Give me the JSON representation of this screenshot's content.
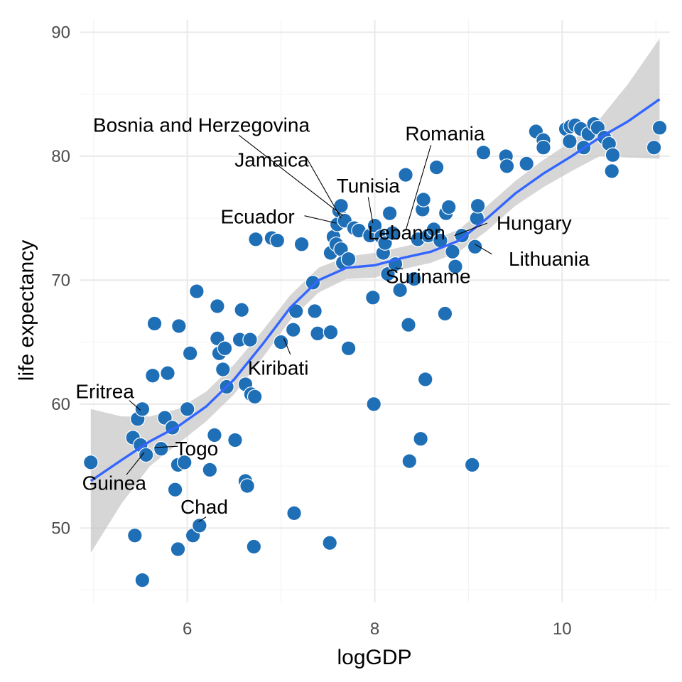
{
  "chart_data": {
    "type": "scatter",
    "title": "",
    "xlabel": "logGDP",
    "ylabel": "life expectancy",
    "xlim": [
      4.85,
      11.15
    ],
    "ylim": [
      44,
      91
    ],
    "x_ticks": [
      6,
      8,
      10
    ],
    "y_ticks": [
      50,
      60,
      70,
      80,
      90
    ],
    "grid": true,
    "legend": "none",
    "colors": {
      "points": "#1f6fb6",
      "point_edge": "#ffffff",
      "smooth": "#3366ff",
      "ribbon": "#c8c8c8",
      "grid": "#ebebeb"
    },
    "points": [
      [
        4.97,
        55.3
      ],
      [
        5.42,
        57.3
      ],
      [
        5.44,
        49.4
      ],
      [
        5.47,
        58.8
      ],
      [
        5.52,
        59.6
      ],
      [
        5.5,
        56.7
      ],
      [
        5.56,
        55.9
      ],
      [
        5.52,
        45.8
      ],
      [
        5.63,
        62.3
      ],
      [
        5.65,
        66.5
      ],
      [
        5.72,
        56.4
      ],
      [
        5.76,
        58.9
      ],
      [
        5.79,
        62.5
      ],
      [
        5.84,
        58.1
      ],
      [
        5.87,
        53.1
      ],
      [
        5.9,
        55.1
      ],
      [
        5.9,
        48.3
      ],
      [
        5.91,
        66.3
      ],
      [
        5.97,
        55.3
      ],
      [
        6.0,
        59.6
      ],
      [
        6.03,
        64.1
      ],
      [
        6.06,
        49.4
      ],
      [
        6.13,
        50.2
      ],
      [
        6.1,
        69.1
      ],
      [
        6.24,
        54.7
      ],
      [
        6.29,
        57.5
      ],
      [
        6.32,
        65.3
      ],
      [
        6.32,
        67.9
      ],
      [
        6.34,
        64.1
      ],
      [
        6.38,
        62.8
      ],
      [
        6.4,
        64.5
      ],
      [
        6.42,
        61.4
      ],
      [
        6.51,
        57.1
      ],
      [
        6.56,
        65.2
      ],
      [
        6.58,
        67.6
      ],
      [
        6.62,
        53.8
      ],
      [
        6.62,
        61.6
      ],
      [
        6.64,
        53.4
      ],
      [
        6.67,
        65.2
      ],
      [
        6.68,
        60.8
      ],
      [
        6.71,
        48.5
      ],
      [
        6.72,
        60.6
      ],
      [
        6.73,
        73.3
      ],
      [
        6.9,
        73.4
      ],
      [
        6.96,
        73.2
      ],
      [
        7.0,
        65.0
      ],
      [
        7.13,
        66.0
      ],
      [
        7.14,
        51.2
      ],
      [
        7.16,
        67.5
      ],
      [
        7.22,
        72.9
      ],
      [
        7.34,
        69.8
      ],
      [
        7.36,
        67.5
      ],
      [
        7.39,
        65.7
      ],
      [
        7.53,
        65.8
      ],
      [
        7.52,
        48.8
      ],
      [
        7.53,
        72.2
      ],
      [
        7.56,
        73.5
      ],
      [
        7.59,
        72.9
      ],
      [
        7.6,
        74.5
      ],
      [
        7.62,
        75.6
      ],
      [
        7.64,
        76.0
      ],
      [
        7.64,
        72.5
      ],
      [
        7.66,
        71.4
      ],
      [
        7.68,
        74.8
      ],
      [
        7.72,
        64.5
      ],
      [
        7.72,
        71.7
      ],
      [
        7.78,
        74.2
      ],
      [
        7.83,
        74.0
      ],
      [
        7.95,
        73.6
      ],
      [
        7.98,
        68.6
      ],
      [
        7.99,
        60.0
      ],
      [
        8.0,
        74.4
      ],
      [
        8.07,
        73.5
      ],
      [
        8.09,
        72.2
      ],
      [
        8.11,
        73.0
      ],
      [
        8.14,
        70.5
      ],
      [
        8.16,
        75.4
      ],
      [
        8.19,
        73.8
      ],
      [
        8.22,
        71.3
      ],
      [
        8.27,
        69.2
      ],
      [
        8.33,
        78.5
      ],
      [
        8.36,
        66.4
      ],
      [
        8.37,
        55.4
      ],
      [
        8.42,
        70.1
      ],
      [
        8.46,
        73.3
      ],
      [
        8.49,
        57.2
      ],
      [
        8.51,
        75.7
      ],
      [
        8.52,
        76.5
      ],
      [
        8.54,
        62.0
      ],
      [
        8.57,
        73.6
      ],
      [
        8.63,
        74.1
      ],
      [
        8.66,
        79.1
      ],
      [
        8.7,
        73.2
      ],
      [
        8.75,
        67.3
      ],
      [
        8.76,
        75.4
      ],
      [
        8.79,
        75.9
      ],
      [
        8.83,
        72.3
      ],
      [
        8.86,
        71.1
      ],
      [
        8.93,
        73.6
      ],
      [
        9.04,
        55.1
      ],
      [
        9.07,
        72.7
      ],
      [
        9.09,
        75.0
      ],
      [
        9.1,
        76.0
      ],
      [
        9.16,
        80.3
      ],
      [
        9.4,
        80.0
      ],
      [
        9.41,
        79.2
      ],
      [
        9.62,
        79.4
      ],
      [
        9.72,
        82.0
      ],
      [
        9.8,
        81.3
      ],
      [
        9.8,
        80.7
      ],
      [
        10.04,
        82.2
      ],
      [
        10.08,
        81.2
      ],
      [
        10.09,
        82.4
      ],
      [
        10.14,
        82.5
      ],
      [
        10.2,
        82.2
      ],
      [
        10.23,
        80.7
      ],
      [
        10.28,
        81.8
      ],
      [
        10.34,
        82.6
      ],
      [
        10.38,
        82.3
      ],
      [
        10.45,
        81.5
      ],
      [
        10.5,
        81.0
      ],
      [
        10.54,
        80.1
      ],
      [
        10.53,
        78.8
      ],
      [
        10.98,
        80.7
      ],
      [
        11.04,
        82.3
      ]
    ],
    "smooth": {
      "x": [
        4.97,
        5.3,
        5.6,
        5.9,
        6.2,
        6.5,
        6.8,
        7.1,
        7.4,
        7.7,
        8.0,
        8.3,
        8.6,
        8.9,
        9.2,
        9.5,
        9.8,
        10.1,
        10.4,
        10.7,
        11.04
      ],
      "y": [
        53.8,
        55.5,
        57.0,
        58.2,
        59.8,
        62.0,
        64.8,
        67.8,
        70.0,
        71.0,
        71.2,
        71.8,
        72.3,
        73.2,
        75.0,
        77.0,
        78.6,
        80.0,
        81.5,
        82.8,
        84.6
      ],
      "lower": [
        48.0,
        52.0,
        55.0,
        56.8,
        58.6,
        60.8,
        63.7,
        66.8,
        69.0,
        70.1,
        70.2,
        70.9,
        71.4,
        72.3,
        74.0,
        76.0,
        77.5,
        78.8,
        80.0,
        79.9,
        79.8
      ],
      "upper": [
        59.6,
        59.0,
        59.0,
        59.6,
        61.0,
        63.2,
        65.9,
        68.8,
        71.0,
        71.9,
        72.2,
        72.7,
        73.2,
        74.1,
        76.0,
        78.0,
        79.7,
        81.2,
        83.0,
        85.8,
        89.5
      ]
    },
    "annotations": [
      {
        "text": "Bosnia and Herzegovina",
        "x": 7.66,
        "y": 75.2,
        "tx": 6.15,
        "ty": 82.4,
        "anchor": "middle",
        "lx": 6.55,
        "ly": 81.7
      },
      {
        "text": "Jamaica",
        "x": 7.64,
        "y": 75.0,
        "tx": 6.9,
        "ty": 79.6,
        "anchor": "middle",
        "lx": 7.27,
        "ly": 79.9
      },
      {
        "text": "Romania",
        "x": 8.33,
        "y": 74.0,
        "tx": 8.75,
        "ty": 81.7,
        "anchor": "middle",
        "lx": 8.6,
        "ly": 80.9
      },
      {
        "text": "Tunisia",
        "x": 7.98,
        "y": 74.6,
        "tx": 7.93,
        "ty": 77.5,
        "anchor": "middle",
        "lx": 7.93,
        "ly": 76.7
      },
      {
        "text": "Ecuador",
        "x": 7.59,
        "y": 74.6,
        "tx": 6.75,
        "ty": 75.0,
        "anchor": "middle",
        "lx": 7.25,
        "ly": 75.2
      },
      {
        "text": "Lebanon",
        "x": 8.09,
        "y": 73.8,
        "tx": 8.34,
        "ty": 73.7,
        "anchor": "middle",
        "lx": 8.1,
        "ly": 73.6
      },
      {
        "text": "Hungary",
        "x": 8.85,
        "y": 73.6,
        "tx": 9.7,
        "ty": 74.5,
        "anchor": "middle",
        "lx": 9.2,
        "ly": 74.6
      },
      {
        "text": "Lithuania",
        "x": 9.07,
        "y": 72.9,
        "tx": 9.86,
        "ty": 71.6,
        "anchor": "middle",
        "lx": 9.25,
        "ly": 72.1
      },
      {
        "text": "Suriname",
        "x": 8.22,
        "y": 71.0,
        "tx": 8.57,
        "ty": 70.2,
        "anchor": "middle",
        "lx": 8.3,
        "ly": 70.9
      },
      {
        "text": "Kiribati",
        "x": 7.03,
        "y": 65.3,
        "tx": 6.97,
        "ty": 62.8,
        "anchor": "middle",
        "lx": 7.1,
        "ly": 64.0
      },
      {
        "text": "Eritrea",
        "x": 5.5,
        "y": 59.5,
        "tx": 5.12,
        "ty": 60.9,
        "anchor": "middle",
        "lx": 5.38,
        "ly": 60.3
      },
      {
        "text": "Togo",
        "x": 5.65,
        "y": 56.5,
        "tx": 6.1,
        "ty": 56.3,
        "anchor": "middle",
        "lx": 5.9,
        "ly": 56.6
      },
      {
        "text": "Guinea",
        "x": 5.54,
        "y": 56.1,
        "tx": 5.22,
        "ty": 53.5,
        "anchor": "middle",
        "lx": 5.35,
        "ly": 54.3
      },
      {
        "text": "Chad",
        "x": 6.12,
        "y": 50.5,
        "tx": 6.18,
        "ty": 51.6,
        "anchor": "middle",
        "lx": 6.2,
        "ly": 50.9
      }
    ]
  }
}
